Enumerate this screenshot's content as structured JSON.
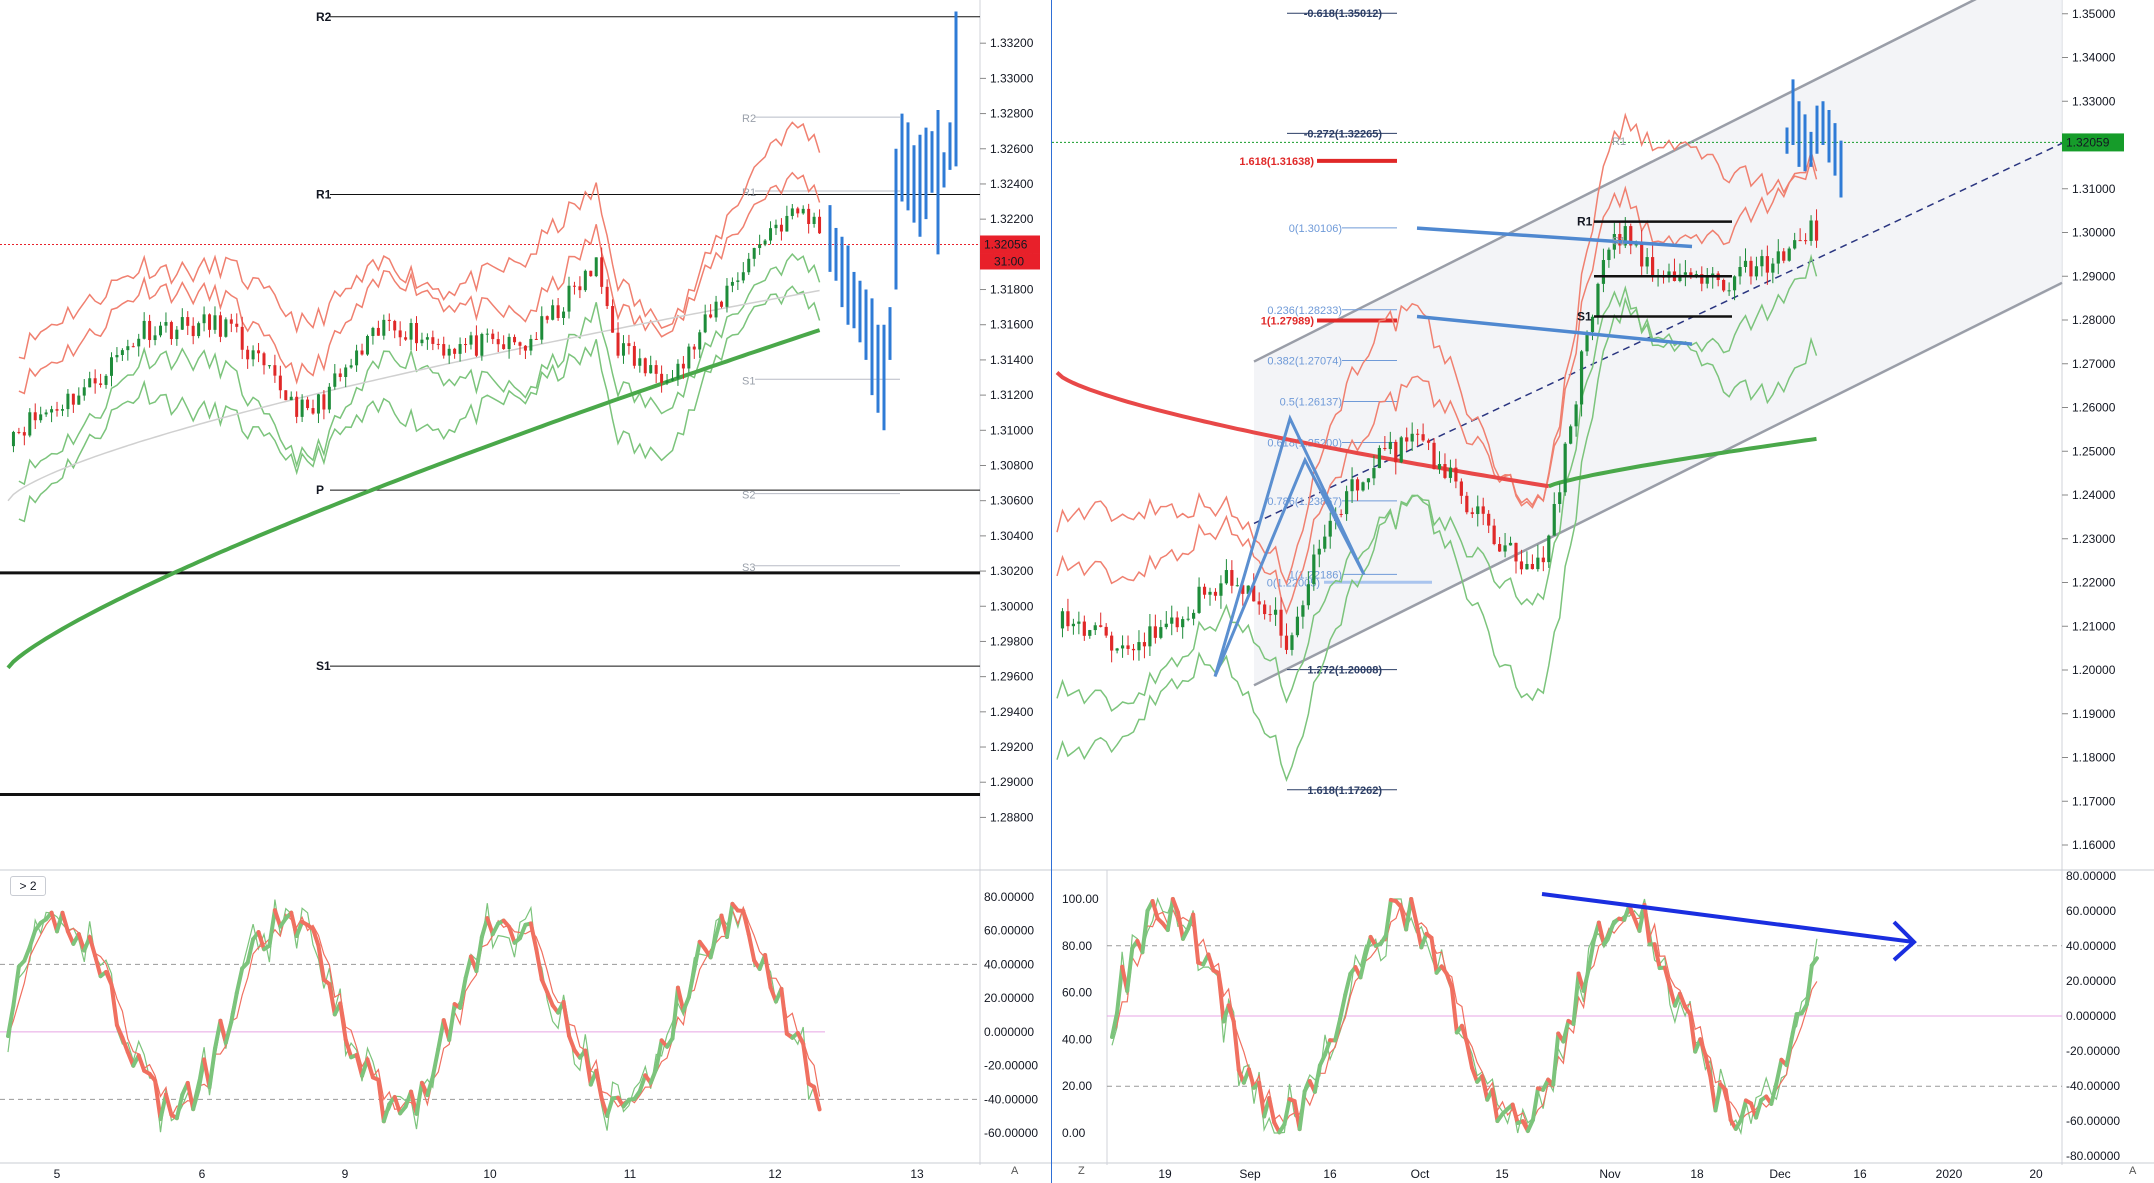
{
  "colors": {
    "bull": "#1e8c3a",
    "bear": "#e02828",
    "forecast": "#2f7bd6",
    "ema_fast": "#4aa84a",
    "ema_slow": "#d0d0d0",
    "band_upper": "#f08070",
    "band_lower": "#7cc47c",
    "price_red": "#e8202a",
    "price_green": "#169c2a",
    "stoch_k": "#7cc47c",
    "stoch_d": "#f07060",
    "divergence": "#1a2ee0"
  },
  "left_chart": {
    "price_axis": {
      "min": 1.287,
      "max": 1.334,
      "ticks": [
        "1.33200",
        "1.33000",
        "1.32800",
        "1.32600",
        "1.32400",
        "1.32200",
        "1.32000",
        "1.31800",
        "1.31600",
        "1.31400",
        "1.31200",
        "1.31000",
        "1.30800",
        "1.30600",
        "1.30400",
        "1.30200",
        "1.30000",
        "1.29800",
        "1.29600",
        "1.29400",
        "1.29200",
        "1.29000",
        "1.28800"
      ]
    },
    "current_price": "1.32056",
    "countdown": "31:00",
    "time_labels": [
      "5",
      "6",
      "9",
      "10",
      "11",
      "12",
      "13"
    ],
    "corner_label": "A",
    "levels": [
      {
        "label": "R2",
        "value": 1.3335,
        "weight": "thin"
      },
      {
        "label": "R1",
        "value": 1.3234,
        "weight": "thin"
      },
      {
        "label": "P",
        "value": 1.3066,
        "weight": "thin"
      },
      {
        "label": "",
        "value": 1.3019,
        "weight": "thick"
      },
      {
        "label": "S1",
        "value": 1.2966,
        "weight": "thin"
      },
      {
        "label": "",
        "value": 1.2893,
        "weight": "thick"
      }
    ],
    "ghost_levels": [
      {
        "label": "R2",
        "value": 1.3278
      },
      {
        "label": "R1",
        "value": 1.3236
      },
      {
        "label": "S1",
        "value": 1.3129
      },
      {
        "label": "S2",
        "value": 1.3064
      },
      {
        "label": "S3",
        "value": 1.3023
      }
    ],
    "collapse_button": "> 2",
    "oscillator_ticks": [
      "80.00000",
      "60.00000",
      "40.00000",
      "20.00000",
      "0.000000",
      "-20.00000",
      "-40.00000",
      "-60.00000"
    ]
  },
  "right_chart": {
    "price_axis": {
      "min": 1.16,
      "max": 1.352,
      "ticks": [
        "1.35000",
        "1.34000",
        "1.33000",
        "1.32000",
        "1.31000",
        "1.30000",
        "1.29000",
        "1.28000",
        "1.27000",
        "1.26000",
        "1.25000",
        "1.24000",
        "1.23000",
        "1.22000",
        "1.21000",
        "1.20000",
        "1.19000",
        "1.18000",
        "1.17000",
        "1.16000"
      ]
    },
    "current_price": "1.32059",
    "time_labels": [
      "19",
      "Sep",
      "16",
      "Oct",
      "15",
      "Nov",
      "18",
      "Dec",
      "16",
      "2020",
      "20"
    ],
    "corner_left": "Z",
    "corner_right": "A",
    "fib_ext": [
      {
        "label": "-0.618(1.35012)",
        "value": 1.35012
      },
      {
        "label": "-0.272(1.32265)",
        "value": 1.32265
      },
      {
        "label": "1.272(1.20008)",
        "value": 1.20008
      },
      {
        "label": "1.618(1.17262)",
        "value": 1.17262
      }
    ],
    "fib_red": [
      {
        "label": "1.618(1.31638)",
        "value": 1.31638
      },
      {
        "label": "1(1.27989)",
        "value": 1.27989
      }
    ],
    "fib_retr": [
      {
        "label": "0(1.30106)",
        "value": 1.30106
      },
      {
        "label": "0.236(1.28233)",
        "value": 1.28233
      },
      {
        "label": "0.382(1.27074)",
        "value": 1.27074
      },
      {
        "label": "0.5(1.26137)",
        "value": 1.26137
      },
      {
        "label": "0.618(1.25200)",
        "value": 1.252
      },
      {
        "label": "0.786(1.23867)",
        "value": 1.23867
      },
      {
        "label": "1(1.22186)",
        "value": 1.22186
      },
      {
        "label": "0(1.22005)",
        "value": 1.22005
      }
    ],
    "pivots": [
      {
        "label": "R1",
        "value": 1.3025
      },
      {
        "label": "",
        "value": 1.29
      },
      {
        "label": "S1",
        "value": 1.2808
      }
    ],
    "ghost_pivots": [
      {
        "label": "R1",
        "value": 1.3209
      },
      {
        "label": "S1",
        "value": 1.2982
      }
    ],
    "osc_left_ticks": [
      "100.00",
      "80.00",
      "60.00",
      "40.00",
      "20.00",
      "0.00"
    ],
    "osc_right_ticks": [
      "80.00000",
      "60.00000",
      "40.00000",
      "20.00000",
      "0.000000",
      "-20.00000",
      "-40.00000",
      "-60.00000",
      "-80.00000"
    ]
  }
}
